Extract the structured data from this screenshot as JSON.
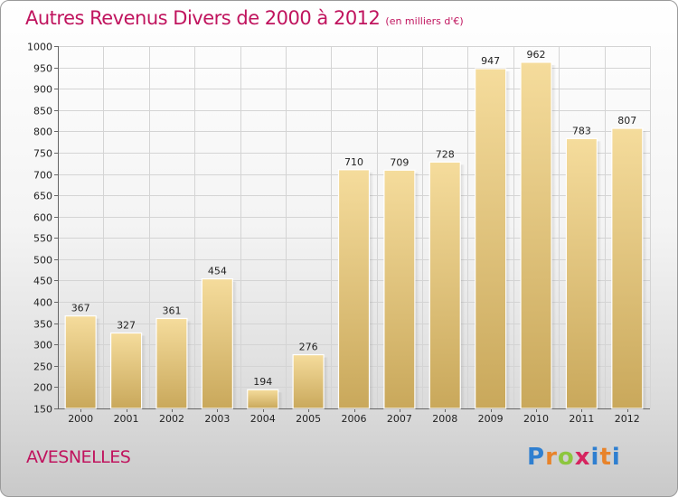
{
  "header": {
    "title": "Autres Revenus Divers de 2000 à 2012",
    "subtitle": "(en milliers d'€)"
  },
  "footer": {
    "city": "AVESNELLES",
    "logo_letters": [
      "P",
      "r",
      "o",
      "x",
      "i",
      "t",
      "i"
    ],
    "logo_colors": [
      "#2f7fd0",
      "#e8832a",
      "#8dc63f",
      "#d6245f",
      "#2f7fd0",
      "#e8832a",
      "#2f7fd0"
    ]
  },
  "colors": {
    "title": "#c0145e",
    "bar_light": "#f5dc9c",
    "bar_dark": "#c9a85b",
    "grid": "#d4d4d4"
  },
  "chart_data": {
    "type": "bar",
    "title": "Autres Revenus Divers de 2000 à 2012",
    "subtitle": "(en milliers d'€)",
    "categories": [
      "2000",
      "2001",
      "2002",
      "2003",
      "2004",
      "2005",
      "2006",
      "2007",
      "2008",
      "2009",
      "2010",
      "2011",
      "2012"
    ],
    "values": [
      367,
      327,
      361,
      454,
      194,
      276,
      710,
      709,
      728,
      947,
      962,
      783,
      807
    ],
    "ylim": [
      150,
      1000
    ],
    "yticks": [
      150,
      200,
      250,
      300,
      350,
      400,
      450,
      500,
      550,
      600,
      650,
      700,
      750,
      800,
      850,
      900,
      950,
      1000
    ],
    "grid": true,
    "xlabel": "",
    "ylabel": ""
  }
}
